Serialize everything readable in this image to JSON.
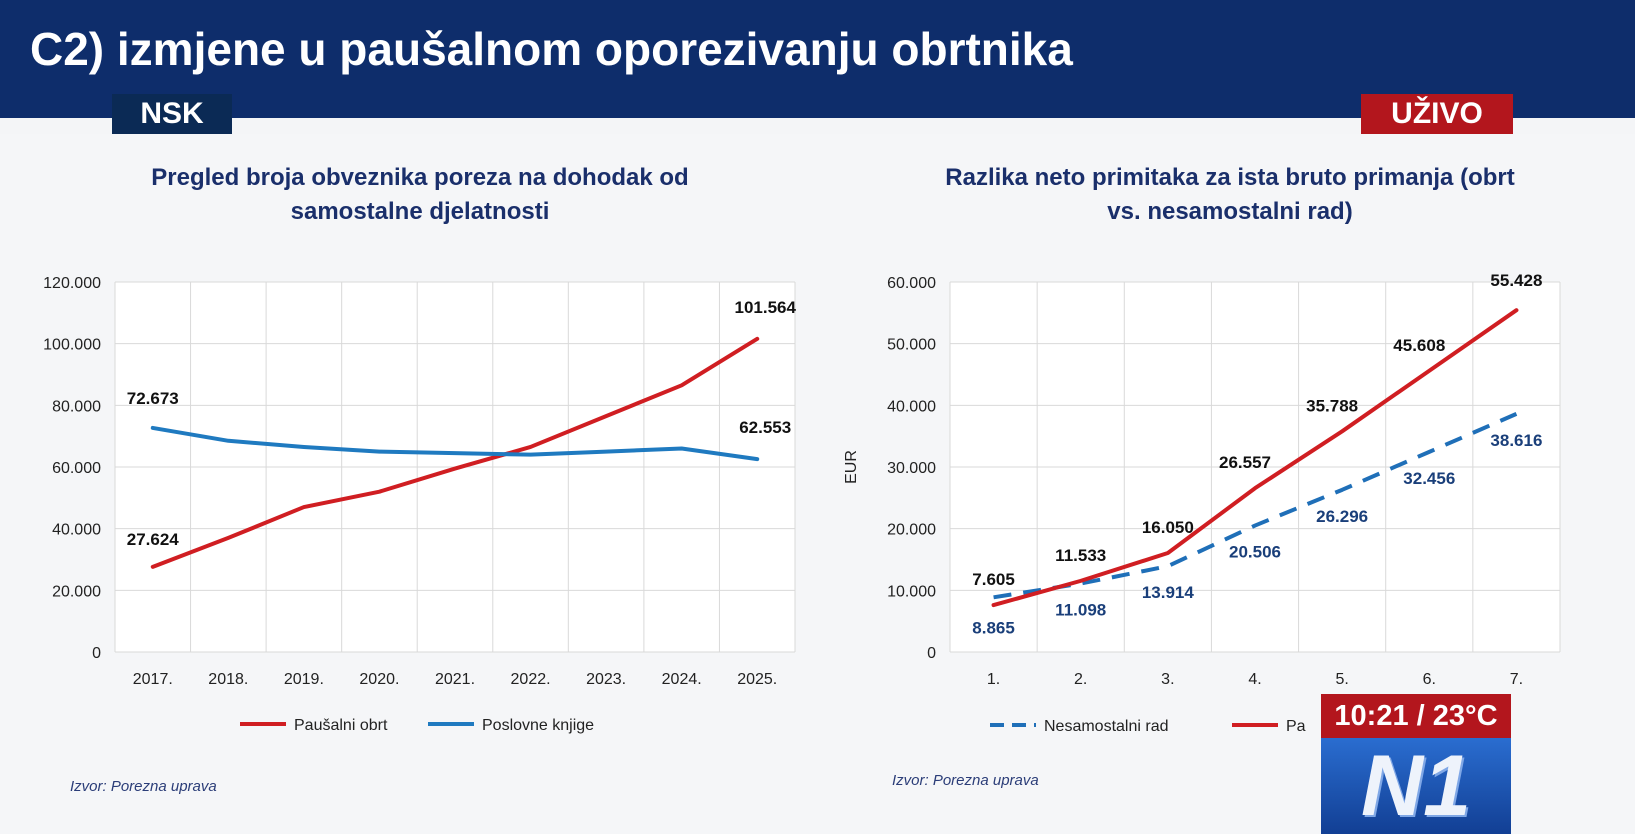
{
  "header": {
    "title": "C2) izmjene u paušalnom oporezivanju obrtnika",
    "badge_left": "NSK",
    "badge_right": "UŽIVO"
  },
  "overlay": {
    "time_temp": "10:21 / 23°C",
    "logo": "N1"
  },
  "colors": {
    "header_bg": "#0e2d6b",
    "red": "#d01e22",
    "blue": "#1f7ac0",
    "navy_text": "#1a2f6b"
  },
  "chart_data": [
    {
      "type": "line",
      "title": "Pregled broja obveznika poreza na dohodak od samostalne djelatnosti",
      "title_lines": [
        "Pregled broja obveznika poreza na dohodak od",
        "samostalne djelatnosti"
      ],
      "categories": [
        "2017.",
        "2018.",
        "2019.",
        "2020.",
        "2021.",
        "2022.",
        "2023.",
        "2024.",
        "2025."
      ],
      "yticks": [
        "0",
        "20.000",
        "40.000",
        "60.000",
        "80.000",
        "100.000",
        "120.000"
      ],
      "ylim": [
        0,
        120000
      ],
      "grid": true,
      "legend_position": "bottom",
      "series": [
        {
          "name": "Paušalni obrt",
          "color": "#d01e22",
          "dashed": false,
          "values": [
            27624,
            37000,
            47000,
            52000,
            59500,
            66500,
            76500,
            86500,
            101564
          ],
          "labels": {
            "0": "27.624",
            "8": "101.564"
          }
        },
        {
          "name": "Poslovne knjige",
          "color": "#1f7ac0",
          "dashed": false,
          "values": [
            72673,
            68500,
            66500,
            65000,
            64500,
            64000,
            65000,
            66000,
            62553
          ],
          "labels": {
            "0": "72.673",
            "8": "62.553"
          }
        }
      ],
      "source": "Izvor: Porezna uprava"
    },
    {
      "type": "line",
      "title": "Razlika neto primitaka za ista bruto primanja (obrt vs. nesamostalni rad)",
      "title_lines": [
        "Razlika neto primitaka za ista bruto primanja (obrt",
        "vs. nesamostalni rad)"
      ],
      "categories": [
        "1.",
        "2.",
        "3.",
        "4.",
        "5.",
        "6.",
        "7."
      ],
      "yticks": [
        "0",
        "10.000",
        "20.000",
        "30.000",
        "40.000",
        "50.000",
        "60.000"
      ],
      "ylim": [
        0,
        60000
      ],
      "ylabel": "EUR",
      "grid": true,
      "legend_position": "bottom",
      "series": [
        {
          "name": "Nesamostalni rad",
          "color": "#1f6fb8",
          "dashed": true,
          "values": [
            8865,
            11098,
            13914,
            20506,
            26296,
            32456,
            38616
          ],
          "labels": {
            "0": "8.865",
            "1": "11.098",
            "2": "13.914",
            "3": "20.506",
            "4": "26.296",
            "5": "32.456",
            "6": "38.616"
          }
        },
        {
          "name": "Pa",
          "color": "#d01e22",
          "dashed": false,
          "values": [
            7605,
            11533,
            16050,
            26557,
            35788,
            45608,
            55428
          ],
          "labels": {
            "0": "7.605",
            "1": "11.533",
            "2": "16.050",
            "3": "26.557",
            "4": "35.788",
            "5": "45.608",
            "6": "55.428"
          }
        }
      ],
      "source": "Izvor: Porezna uprava"
    }
  ]
}
